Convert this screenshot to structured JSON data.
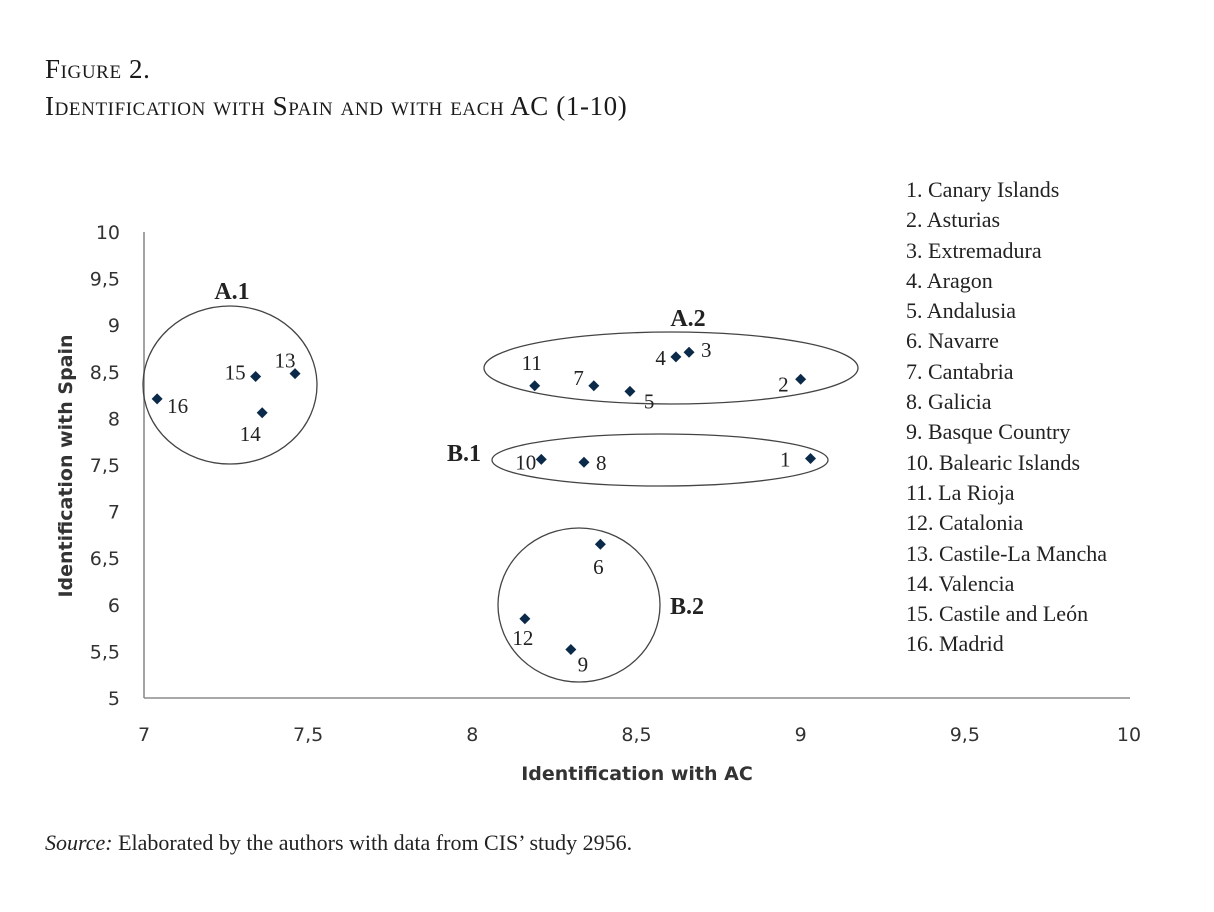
{
  "figure": {
    "label": "Figure 2.",
    "title": "Identification with Spain and with each AC (1-10)"
  },
  "legend": [
    "1. Canary Islands",
    "2. Asturias",
    "3. Extremadura",
    "4. Aragon",
    "5. Andalusia",
    "6. Navarre",
    "7. Cantabria",
    "8. Galicia",
    "9. Basque Country",
    "10. Balearic Islands",
    "11. La Rioja",
    "12. Catalonia",
    "13. Castile-La Mancha",
    "14. Valencia",
    "15. Castile and León",
    "16. Madrid"
  ],
  "source": {
    "prefix": "Source:",
    "text": "Elaborated by the authors with data from CIS’ study 2956."
  },
  "chart_data": {
    "type": "scatter",
    "xlabel": "Identification with AC",
    "ylabel": "Identification with Spain",
    "xlim": [
      7,
      10
    ],
    "ylim": [
      5,
      10
    ],
    "x_ticks": [
      "7",
      "7,5",
      "8",
      "8,5",
      "9",
      "9,5",
      "10"
    ],
    "y_ticks": [
      "5",
      "5,5",
      "6",
      "6,5",
      "7",
      "7,5",
      "8",
      "8,5",
      "9",
      "9,5",
      "10"
    ],
    "marker_color": "#0b2a4a",
    "points": [
      {
        "label": "1",
        "x": 9.03,
        "y": 7.57
      },
      {
        "label": "2",
        "x": 9.0,
        "y": 8.42
      },
      {
        "label": "3",
        "x": 8.66,
        "y": 8.71
      },
      {
        "label": "4",
        "x": 8.62,
        "y": 8.66
      },
      {
        "label": "5",
        "x": 8.48,
        "y": 8.29
      },
      {
        "label": "6",
        "x": 8.39,
        "y": 6.65
      },
      {
        "label": "7",
        "x": 8.37,
        "y": 8.35
      },
      {
        "label": "8",
        "x": 8.34,
        "y": 7.53
      },
      {
        "label": "9",
        "x": 8.3,
        "y": 5.52
      },
      {
        "label": "10",
        "x": 8.21,
        "y": 7.56
      },
      {
        "label": "11",
        "x": 8.19,
        "y": 8.35
      },
      {
        "label": "12",
        "x": 8.16,
        "y": 5.85
      },
      {
        "label": "13",
        "x": 7.46,
        "y": 8.48
      },
      {
        "label": "14",
        "x": 7.36,
        "y": 8.06
      },
      {
        "label": "15",
        "x": 7.34,
        "y": 8.45
      },
      {
        "label": "16",
        "x": 7.04,
        "y": 8.21
      }
    ],
    "clusters": [
      {
        "label": "A.1",
        "members": [
          "13",
          "14",
          "15",
          "16"
        ]
      },
      {
        "label": "A.2",
        "members": [
          "2",
          "3",
          "4",
          "5",
          "7",
          "11"
        ]
      },
      {
        "label": "B.1",
        "members": [
          "1",
          "8",
          "10"
        ]
      },
      {
        "label": "B.2",
        "members": [
          "6",
          "9",
          "12"
        ]
      }
    ]
  }
}
